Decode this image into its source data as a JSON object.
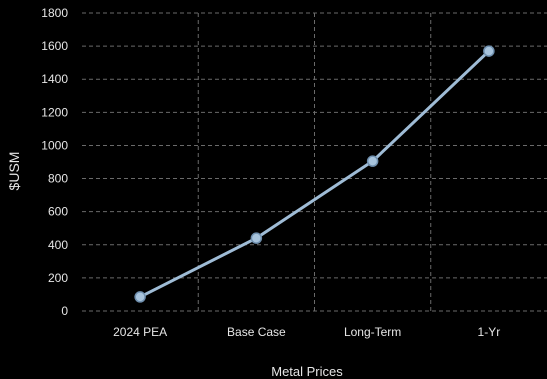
{
  "chart_data": {
    "type": "line",
    "categories": [
      "2024 PEA",
      "Base Case",
      "Long-Term",
      "1-Yr"
    ],
    "series": [
      {
        "values": [
          85,
          440,
          905,
          1570
        ]
      }
    ],
    "xlabel": "Metal Prices",
    "ylabel": "$USM",
    "ylim": [
      0,
      1800
    ],
    "yticks": [
      0,
      200,
      400,
      600,
      800,
      1000,
      1200,
      1400,
      1600,
      1800
    ],
    "grid": true,
    "colors": {
      "background": "#000000",
      "line": "#9fbcd6",
      "marker_fill": "#a7c3dc",
      "marker_stroke": "#6f8fae",
      "grid": "#6a6a6a",
      "text": "#e6e6e6"
    }
  }
}
